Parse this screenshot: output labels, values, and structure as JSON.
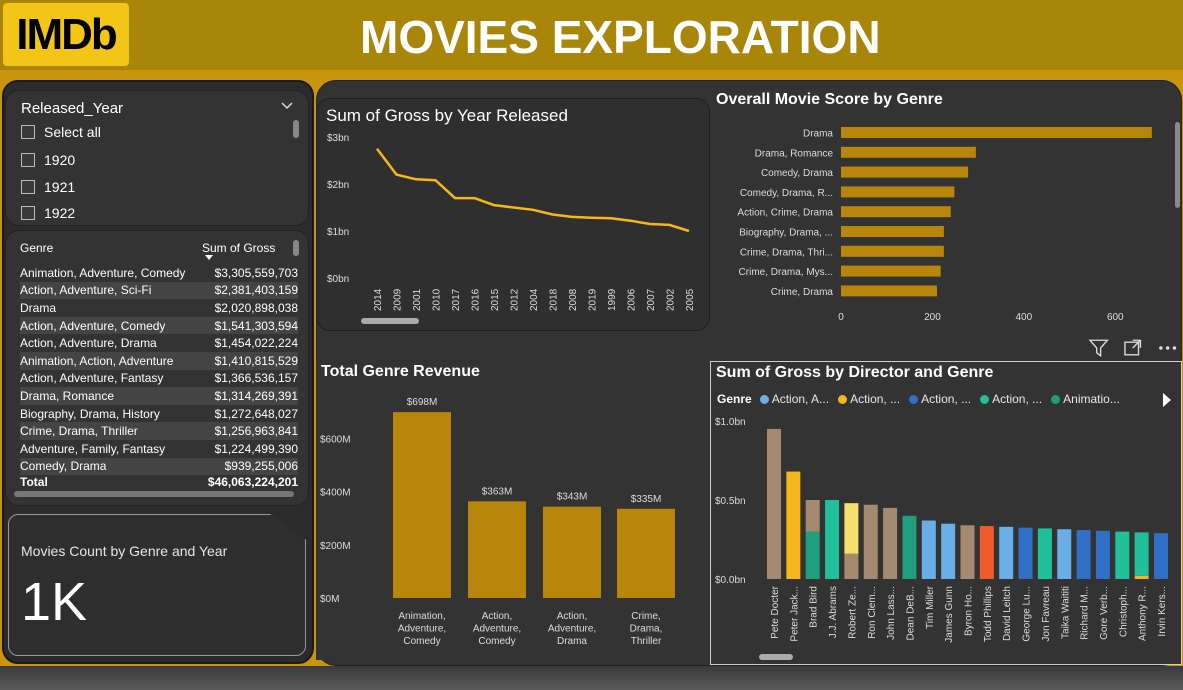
{
  "header": {
    "logo": "IMDb",
    "title": "MOVIES EXPLORATION"
  },
  "slicer": {
    "title": "Released_Year",
    "items": [
      "Select all",
      "1920",
      "1921",
      "1922"
    ]
  },
  "table": {
    "headers": [
      "Genre",
      "Sum of Gross"
    ],
    "rows": [
      [
        "Animation, Adventure, Comedy",
        "$3,305,559,703"
      ],
      [
        "Action, Adventure, Sci-Fi",
        "$2,381,403,159"
      ],
      [
        "Drama",
        "$2,020,898,038"
      ],
      [
        "Action, Adventure, Comedy",
        "$1,541,303,594"
      ],
      [
        "Action, Adventure, Drama",
        "$1,454,022,224"
      ],
      [
        "Animation, Action, Adventure",
        "$1,410,815,529"
      ],
      [
        "Action, Adventure, Fantasy",
        "$1,366,536,157"
      ],
      [
        "Drama, Romance",
        "$1,314,269,391"
      ],
      [
        "Biography, Drama, History",
        "$1,272,648,027"
      ],
      [
        "Crime, Drama, Thriller",
        "$1,256,963,841"
      ],
      [
        "Adventure, Family, Fantasy",
        "$1,224,499,390"
      ],
      [
        "Comedy, Drama",
        "$939,255,006"
      ]
    ],
    "total": [
      "Total",
      "$46,063,224,201"
    ]
  },
  "card": {
    "title": "Movies Count by Genre and Year",
    "value": "1K"
  },
  "icons": {
    "filter": "filter-icon",
    "focus": "focus-mode-icon",
    "more": "more-options-icon",
    "next": "next-page-icon"
  },
  "colors": {
    "accent": "#f5b71b",
    "bar": "#b8860b",
    "header": "#a8860a"
  },
  "chart_data": [
    {
      "type": "line",
      "title": "Sum of Gross by Year Released",
      "x": [
        "2014",
        "2009",
        "2001",
        "2010",
        "2017",
        "2016",
        "2015",
        "2012",
        "2004",
        "2018",
        "2008",
        "2019",
        "1999",
        "2006",
        "2007",
        "2002",
        "2005"
      ],
      "values": [
        2.75,
        2.2,
        2.1,
        2.08,
        1.7,
        1.7,
        1.55,
        1.5,
        1.45,
        1.35,
        1.3,
        1.28,
        1.27,
        1.22,
        1.15,
        1.13,
        1.0
      ],
      "yticks": [
        "$0bn",
        "$1bn",
        "$2bn",
        "$3bn"
      ],
      "ylim": [
        0,
        3
      ]
    },
    {
      "type": "bar",
      "orientation": "horizontal",
      "title": "Overall Movie Score by Genre",
      "categories": [
        "Drama",
        "Drama, Romance",
        "Comedy, Drama",
        "Comedy, Drama, R...",
        "Action, Crime, Drama",
        "Biography, Drama, ...",
        "Crime, Drama, Thri...",
        "Crime, Drama, Mys...",
        "Crime, Drama"
      ],
      "values": [
        680,
        295,
        278,
        248,
        240,
        225,
        225,
        218,
        210
      ],
      "xticks": [
        "0",
        "200",
        "400",
        "600"
      ],
      "xlim": [
        0,
        700
      ]
    },
    {
      "type": "bar",
      "title": "Total Genre Revenue",
      "categories": [
        [
          "Animation,",
          "Adventure,",
          "Comedy"
        ],
        [
          "Action,",
          "Adventure,",
          "Comedy"
        ],
        [
          "Action,",
          "Adventure,",
          "Drama"
        ],
        [
          "Crime,",
          "Drama,",
          "Thriller"
        ]
      ],
      "values": [
        698,
        363,
        343,
        335
      ],
      "labels": [
        "$698M",
        "$363M",
        "$343M",
        "$335M"
      ],
      "yticks": [
        "$0M",
        "$200M",
        "$400M",
        "$600M"
      ],
      "ylim": [
        0,
        800
      ]
    },
    {
      "type": "bar",
      "stacked": true,
      "title": "Sum of Gross by Director and Genre",
      "legend_title": "Genre",
      "legend": [
        {
          "name": "Action, A...",
          "color": "#6aaee8"
        },
        {
          "name": "Action, ...",
          "color": "#f5b71b"
        },
        {
          "name": "Action, ...",
          "color": "#2f6fc6"
        },
        {
          "name": "Action, ...",
          "color": "#20c09a"
        },
        {
          "name": "Animatio...",
          "color": "#1f9e7e"
        }
      ],
      "categories": [
        "Pete Docter",
        "Peter Jack...",
        "Brad Bird",
        "J.J. Abrams",
        "Robert Ze...",
        "Ron Clem...",
        "John Lass...",
        "Dean DeB...",
        "Tim Miller",
        "James Gunn",
        "Byron Ho...",
        "Todd Phillips",
        "David Leitch",
        "George Lu...",
        "Jon Favreau",
        "Taika Waititi",
        "Richard M...",
        "Gore Verb...",
        "Christoph...",
        "Anthony R...",
        "Irvin Kers..."
      ],
      "stacks": [
        [
          {
            "v": 0.95,
            "c": "#a48a6e"
          }
        ],
        [
          {
            "v": 0.68,
            "c": "#f5b71b"
          }
        ],
        [
          {
            "v": 0.3,
            "c": "#1f9e7e"
          },
          {
            "v": 0.2,
            "c": "#a48a6e"
          }
        ],
        [
          {
            "v": 0.5,
            "c": "#20c09a"
          }
        ],
        [
          {
            "v": 0.16,
            "c": "#a48a6e"
          },
          {
            "v": 0.32,
            "c": "#f6e06e"
          }
        ],
        [
          {
            "v": 0.47,
            "c": "#a48a6e"
          }
        ],
        [
          {
            "v": 0.45,
            "c": "#a48a6e"
          }
        ],
        [
          {
            "v": 0.4,
            "c": "#1f9e7e"
          }
        ],
        [
          {
            "v": 0.37,
            "c": "#6aaee8"
          }
        ],
        [
          {
            "v": 0.35,
            "c": "#6aaee8"
          }
        ],
        [
          {
            "v": 0.34,
            "c": "#a48a6e"
          }
        ],
        [
          {
            "v": 0.335,
            "c": "#f05a2c"
          }
        ],
        [
          {
            "v": 0.33,
            "c": "#6aaee8"
          }
        ],
        [
          {
            "v": 0.325,
            "c": "#2f6fc6"
          }
        ],
        [
          {
            "v": 0.32,
            "c": "#20c09a"
          }
        ],
        [
          {
            "v": 0.315,
            "c": "#6aaee8"
          }
        ],
        [
          {
            "v": 0.31,
            "c": "#2f6fc6"
          }
        ],
        [
          {
            "v": 0.305,
            "c": "#2f6fc6"
          }
        ],
        [
          {
            "v": 0.3,
            "c": "#20c09a"
          }
        ],
        [
          {
            "v": 0.02,
            "c": "#f5b71b"
          },
          {
            "v": 0.275,
            "c": "#20c09a"
          }
        ],
        [
          {
            "v": 0.29,
            "c": "#2f6fc6"
          }
        ]
      ],
      "yticks": [
        "$0.0bn",
        "$0.5bn",
        "$1.0bn"
      ],
      "ylim": [
        0,
        1.0
      ]
    }
  ]
}
